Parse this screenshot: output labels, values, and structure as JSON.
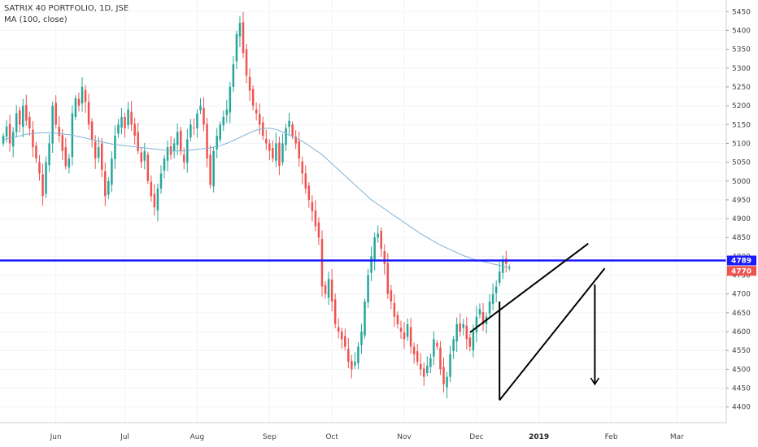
{
  "chart_data": {
    "type": "candlestick",
    "legend": {
      "symbol": "SATRIX 40 PORTFOLIO, 1D, JSE",
      "indicator": "MA (100, close)"
    },
    "y_ticks": [
      4400,
      4450,
      4500,
      4550,
      4600,
      4650,
      4700,
      4750,
      4800,
      4850,
      4900,
      4950,
      5000,
      5050,
      5100,
      5150,
      5200,
      5250,
      5300,
      5350,
      5400,
      5450
    ],
    "ylim": [
      4380,
      5470
    ],
    "x_ticks": [
      {
        "label": "Jun",
        "i": 16,
        "bold": false
      },
      {
        "label": "Jul",
        "i": 37,
        "bold": false
      },
      {
        "label": "Aug",
        "i": 59,
        "bold": false
      },
      {
        "label": "Sep",
        "i": 81,
        "bold": false
      },
      {
        "label": "Oct",
        "i": 100,
        "bold": false
      },
      {
        "label": "Nov",
        "i": 122,
        "bold": false
      },
      {
        "label": "Dec",
        "i": 144,
        "bold": false
      },
      {
        "label": "2019",
        "i": 163,
        "bold": true
      },
      {
        "label": "Feb",
        "i": 185,
        "bold": false
      },
      {
        "label": "Mar",
        "i": 205,
        "bold": false
      }
    ],
    "x_range": [
      -1,
      220
    ],
    "up_color": "#26a69a",
    "down_color": "#ef5350",
    "ma_color": "#7fb3d5",
    "closes": [
      5120,
      5145,
      5100,
      5130,
      5180,
      5150,
      5200,
      5160,
      5140,
      5090,
      5060,
      5020,
      4960,
      5050,
      5100,
      5200,
      5150,
      5120,
      5080,
      5040,
      5060,
      5180,
      5220,
      5200,
      5250,
      5210,
      5150,
      5110,
      5060,
      5090,
      5030,
      4960,
      5000,
      5060,
      5120,
      5150,
      5170,
      5140,
      5190,
      5150,
      5120,
      5080,
      5050,
      5080,
      5000,
      4960,
      4930,
      4980,
      5020,
      5060,
      5090,
      5070,
      5100,
      5130,
      5080,
      5050,
      5110,
      5150,
      5140,
      5180,
      5200,
      5150,
      5060,
      4990,
      5080,
      5120,
      5150,
      5170,
      5190,
      5250,
      5310,
      5390,
      5420,
      5340,
      5280,
      5240,
      5200,
      5180,
      5150,
      5120,
      5100,
      5080,
      5060,
      5100,
      5040,
      5100,
      5140,
      5160,
      5120,
      5100,
      5060,
      5020,
      4980,
      4950,
      4920,
      4880,
      4850,
      4720,
      4700,
      4740,
      4680,
      4620,
      4600,
      4580,
      4560,
      4520,
      4500,
      4520,
      4560,
      4600,
      4680,
      4750,
      4800,
      4850,
      4860,
      4820,
      4780,
      4700,
      4680,
      4640,
      4620,
      4600,
      4580,
      4620,
      4560,
      4540,
      4520,
      4500,
      4480,
      4510,
      4530,
      4580,
      4560,
      4500,
      4460,
      4480,
      4540,
      4580,
      4620,
      4600,
      4620,
      4580,
      4560,
      4600,
      4640,
      4660,
      4620,
      4640,
      4680,
      4700,
      4720,
      4760,
      4790,
      4780,
      4770
    ],
    "ma": [
      5110,
      5112,
      5114,
      5116,
      5118,
      5120,
      5122,
      5124,
      5125,
      5126,
      5127,
      5128,
      5128,
      5128,
      5128,
      5128,
      5127,
      5126,
      5125,
      5124,
      5123,
      5122,
      5120,
      5118,
      5116,
      5114,
      5112,
      5110,
      5108,
      5106,
      5104,
      5102,
      5100,
      5098,
      5097,
      5096,
      5095,
      5094,
      5093,
      5092,
      5091,
      5090,
      5089,
      5088,
      5087,
      5086,
      5085,
      5084,
      5083,
      5082,
      5081,
      5080,
      5080,
      5080,
      5080,
      5080,
      5081,
      5082,
      5083,
      5084,
      5085,
      5086,
      5087,
      5088,
      5090,
      5092,
      5094,
      5097,
      5100,
      5104,
      5108,
      5112,
      5116,
      5120,
      5124,
      5128,
      5132,
      5135,
      5137,
      5139,
      5140,
      5140,
      5139,
      5137,
      5134,
      5130,
      5126,
      5122,
      5118,
      5114,
      5110,
      5105,
      5100,
      5094,
      5088,
      5082,
      5076,
      5070,
      5062,
      5054,
      5046,
      5038,
      5030,
      5022,
      5014,
      5006,
      4998,
      4990,
      4982,
      4974,
      4966,
      4958,
      4950,
      4944,
      4938,
      4932,
      4926,
      4920,
      4914,
      4908,
      4902,
      4896,
      4890,
      4884,
      4878,
      4872,
      4866,
      4860,
      4855,
      4850,
      4845,
      4840,
      4835,
      4830,
      4826,
      4822,
      4818,
      4814,
      4810,
      4806,
      4802,
      4799,
      4796,
      4793,
      4790,
      4788,
      4786,
      4784,
      4782,
      4780,
      4778,
      4776,
      4774,
      4772,
      4770
    ],
    "resistance_line": {
      "price": 4789
    },
    "price_badges": [
      {
        "label": "4789",
        "price": 4789,
        "color": "#1a1aff"
      },
      {
        "label": "4770",
        "price": 4770,
        "color": "#ef5350"
      }
    ],
    "drawings": [
      {
        "name": "wedge-upper-line",
        "from": [
          142,
          4598
        ],
        "to": [
          178,
          4834
        ]
      },
      {
        "name": "wedge-lower-line",
        "from": [
          151,
          4418
        ],
        "to": [
          183,
          4768
        ]
      },
      {
        "name": "wedge-left-vertical",
        "from": [
          151,
          4680
        ],
        "to": [
          151,
          4418
        ]
      },
      {
        "name": "target-arrow",
        "from": [
          180,
          4725
        ],
        "to": [
          180,
          4460
        ],
        "arrow": true
      }
    ]
  }
}
